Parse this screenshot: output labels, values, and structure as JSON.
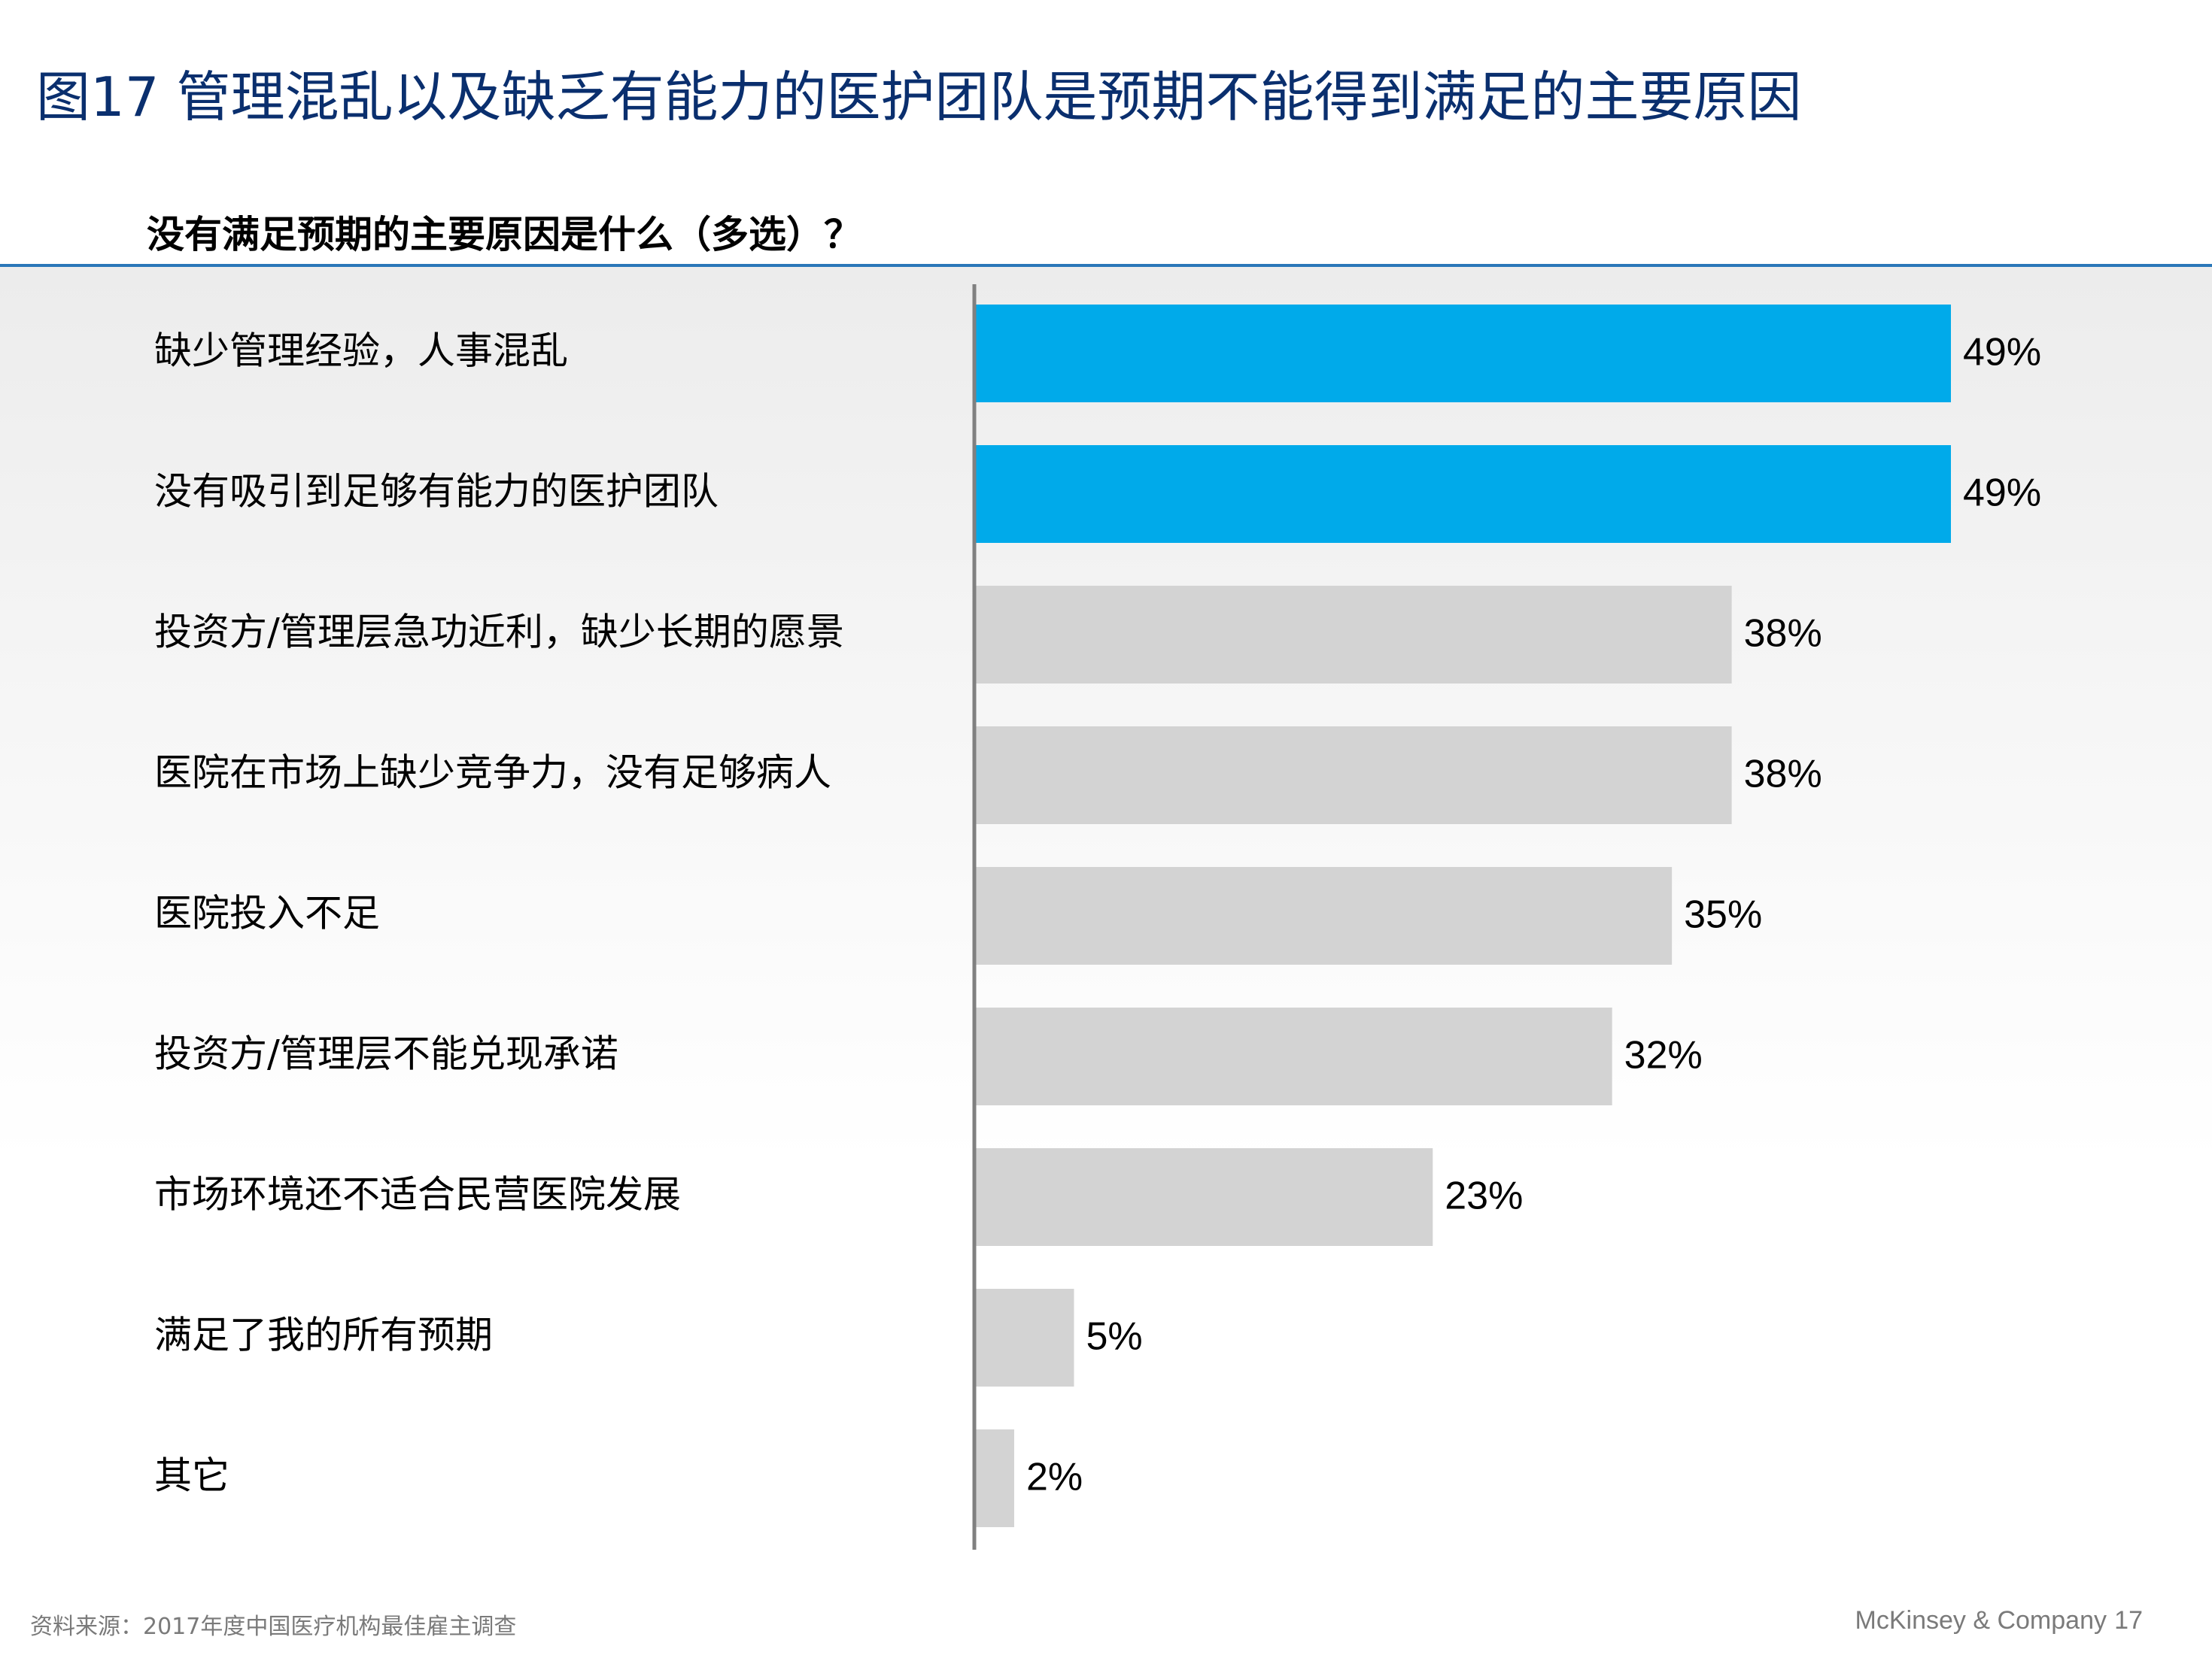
{
  "slide": {
    "title": "图17 管理混乱以及缺乏有能力的医护团队是预期不能得到满足的主要原因",
    "source": "资料来源：2017年度中国医疗机构最佳雇主调查",
    "brand": "McKinsey & Company",
    "page_number": "17"
  },
  "colors": {
    "highlight": "#00AAEA",
    "base": "#D3D3D3",
    "axis": "#808080",
    "title": "#0A2F6E",
    "rule": "#2A77B9"
  },
  "chart_data": {
    "type": "bar",
    "orientation": "horizontal",
    "title": "没有满足预期的主要原因是什么（多选）？",
    "categories": [
      "缺少管理经验，人事混乱",
      "没有吸引到足够有能力的医护团队",
      "投资方/管理层急功近利，缺少长期的愿景",
      "医院在市场上缺少竞争力，没有足够病人",
      "医院投入不足",
      "投资方/管理层不能兑现承诺",
      "市场环境还不适合民营医院发展",
      "满足了我的所有预期",
      "其它"
    ],
    "values": [
      49,
      49,
      38,
      38,
      35,
      32,
      23,
      5,
      2
    ],
    "value_labels": [
      "49%",
      "49%",
      "38%",
      "38%",
      "35%",
      "32%",
      "23%",
      "5%",
      "2%"
    ],
    "highlighted": [
      true,
      true,
      false,
      false,
      false,
      false,
      false,
      false,
      false
    ],
    "unit": "%",
    "xlim": [
      0,
      49
    ],
    "grid": false,
    "legend": "none"
  }
}
